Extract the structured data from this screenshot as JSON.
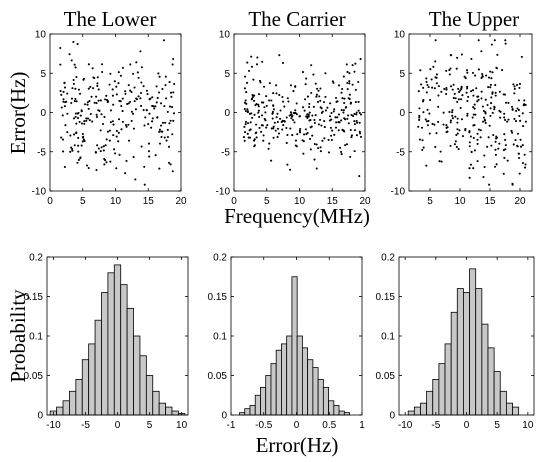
{
  "figure": {
    "ylabel_top": "Error(Hz)",
    "xlabel_top": "Frequency(MHz)",
    "ylabel_bottom": "Probability",
    "xlabel_bottom": "Error(Hz)"
  },
  "chart_data": [
    {
      "type": "scatter",
      "title": "The Lower",
      "xlim": [
        0,
        20
      ],
      "ylim": [
        -10,
        10
      ],
      "xticks": [
        0,
        5,
        10,
        15,
        20
      ],
      "yticks": [
        -10,
        -5,
        0,
        5,
        10
      ],
      "x_range": [
        1.5,
        19
      ],
      "y_spread": 3.8,
      "n_points": 290,
      "seed": 11
    },
    {
      "type": "scatter",
      "title": "The Carrier",
      "xlim": [
        0,
        20
      ],
      "ylim": [
        -10,
        10
      ],
      "xticks": [
        0,
        5,
        10,
        15,
        20
      ],
      "yticks": [
        -10,
        -5,
        0,
        5,
        10
      ],
      "x_range": [
        1.5,
        19.5
      ],
      "y_spread": 3.0,
      "n_points": 330,
      "seed": 23
    },
    {
      "type": "scatter",
      "title": "The Upper",
      "xlim": [
        1.5,
        22
      ],
      "ylim": [
        -10,
        10
      ],
      "xticks": [
        5,
        10,
        15,
        20
      ],
      "yticks": [
        -10,
        -5,
        0,
        5,
        10
      ],
      "x_range": [
        3,
        21
      ],
      "y_spread": 3.9,
      "n_points": 300,
      "seed": 37
    },
    {
      "type": "bar",
      "subtype": "histogram",
      "xlim": [
        -11,
        11
      ],
      "ylim": [
        0,
        0.2
      ],
      "xticks": [
        -10,
        -5,
        0,
        5,
        10
      ],
      "yticks": [
        0,
        0.05,
        0.1,
        0.15,
        0.2
      ],
      "bin_edges": [
        -10.5,
        -9.5,
        -8.5,
        -7.5,
        -6.5,
        -5.5,
        -4.5,
        -3.5,
        -2.5,
        -1.5,
        -0.5,
        0.5,
        1.5,
        2.5,
        3.5,
        4.5,
        5.5,
        6.5,
        7.5,
        8.5,
        9.5,
        10.5
      ],
      "values": [
        0.005,
        0.01,
        0.018,
        0.03,
        0.045,
        0.07,
        0.09,
        0.12,
        0.155,
        0.18,
        0.19,
        0.165,
        0.135,
        0.1,
        0.075,
        0.05,
        0.03,
        0.015,
        0.01,
        0.005,
        0.002
      ]
    },
    {
      "type": "bar",
      "subtype": "histogram",
      "xlim": [
        -1,
        1
      ],
      "ylim": [
        0,
        0.2
      ],
      "xticks": [
        -1,
        -0.5,
        0,
        0.5,
        1
      ],
      "yticks": [
        0,
        0.05,
        0.1,
        0.15,
        0.2
      ],
      "bin_edges": [
        -0.87,
        -0.79,
        -0.71,
        -0.63,
        -0.55,
        -0.47,
        -0.39,
        -0.31,
        -0.23,
        -0.15,
        -0.07,
        0.01,
        0.09,
        0.17,
        0.25,
        0.33,
        0.41,
        0.49,
        0.57,
        0.65,
        0.73,
        0.81
      ],
      "values": [
        0.003,
        0.008,
        0.012,
        0.025,
        0.035,
        0.05,
        0.065,
        0.082,
        0.09,
        0.1,
        0.175,
        0.1,
        0.085,
        0.07,
        0.06,
        0.045,
        0.035,
        0.018,
        0.012,
        0.005,
        0.003
      ]
    },
    {
      "type": "bar",
      "subtype": "histogram",
      "xlim": [
        -11,
        11
      ],
      "ylim": [
        0,
        0.2
      ],
      "xticks": [
        -10,
        -5,
        0,
        5,
        10
      ],
      "yticks": [
        0,
        0.05,
        0.1,
        0.15,
        0.2
      ],
      "bin_edges": [
        -10.5,
        -9.5,
        -8.5,
        -7.5,
        -6.5,
        -5.5,
        -4.5,
        -3.5,
        -2.5,
        -1.5,
        -0.5,
        0.5,
        1.5,
        2.5,
        3.5,
        4.5,
        5.5,
        6.5,
        7.5,
        8.5,
        9.5,
        10.5
      ],
      "values": [
        0.0,
        0.005,
        0.01,
        0.015,
        0.03,
        0.045,
        0.065,
        0.09,
        0.13,
        0.16,
        0.155,
        0.185,
        0.16,
        0.115,
        0.085,
        0.055,
        0.03,
        0.015,
        0.01,
        0.0,
        0.0
      ]
    }
  ]
}
